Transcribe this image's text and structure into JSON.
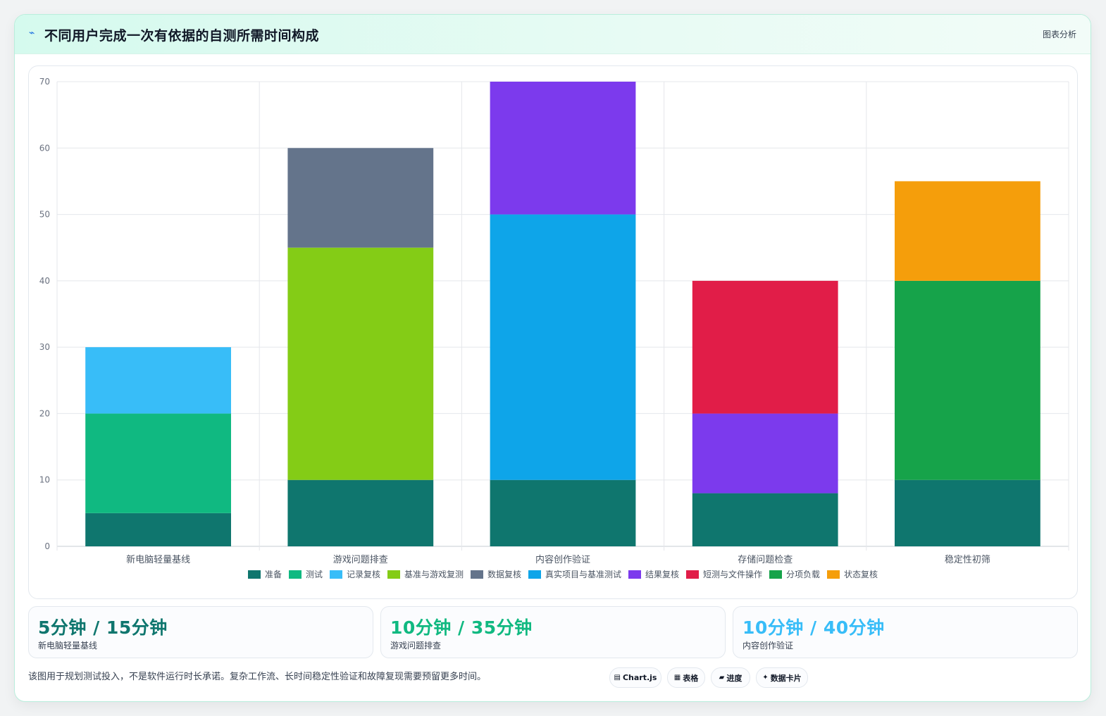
{
  "header": {
    "title": "不同用户完成一次有依据的自测所需时间构成",
    "link_label": "图表分析",
    "bolt_icon": "lightning-icon"
  },
  "chart_data": {
    "type": "bar",
    "stacked": true,
    "title": "",
    "xlabel": "",
    "ylabel": "",
    "ylim": [
      0,
      70
    ],
    "yticks": [
      0,
      10,
      20,
      30,
      40,
      50,
      60,
      70
    ],
    "grid": true,
    "legend_position": "bottom",
    "categories": [
      "新电脑轻量基线",
      "游戏问题排查",
      "内容创作验证",
      "存储问题检查",
      "稳定性初筛"
    ],
    "series": [
      {
        "name": "准备",
        "color": "#0f766e",
        "values": [
          5,
          10,
          10,
          8,
          10
        ]
      },
      {
        "name": "测试",
        "color": "#10b981",
        "values": [
          15,
          0,
          0,
          0,
          0
        ]
      },
      {
        "name": "记录复核",
        "color": "#38bdf8",
        "values": [
          10,
          0,
          0,
          0,
          0
        ]
      },
      {
        "name": "基准与游戏复测",
        "color": "#84cc16",
        "values": [
          0,
          35,
          0,
          0,
          0
        ]
      },
      {
        "name": "数据复核",
        "color": "#64748b",
        "values": [
          0,
          15,
          0,
          0,
          0
        ]
      },
      {
        "name": "真实项目与基准测试",
        "color": "#0ea5e9",
        "values": [
          0,
          0,
          40,
          0,
          0
        ]
      },
      {
        "name": "结果复核",
        "color": "#7c3aed",
        "values": [
          0,
          0,
          20,
          12,
          0
        ]
      },
      {
        "name": "短测与文件操作",
        "color": "#e11d48",
        "values": [
          0,
          0,
          0,
          20,
          0
        ]
      },
      {
        "name": "分项负载",
        "color": "#16a34a",
        "values": [
          0,
          0,
          0,
          0,
          30
        ]
      },
      {
        "name": "状态复核",
        "color": "#f59e0b",
        "values": [
          0,
          0,
          0,
          0,
          15
        ]
      }
    ]
  },
  "stats": [
    {
      "value": "5分钟 / 15分钟",
      "label": "新电脑轻量基线",
      "color": "#0f766e"
    },
    {
      "value": "10分钟 / 35分钟",
      "label": "游戏问题排查",
      "color": "#10b981"
    },
    {
      "value": "10分钟 / 40分钟",
      "label": "内容创作验证",
      "color": "#38bdf8"
    }
  ],
  "footer": {
    "note": "该图用于规划测试投入，不是软件运行时长承诺。复杂工作流、长时间稳定性验证和故障复现需要预留更多时间。",
    "pills": [
      {
        "label": "Chart.js",
        "icon": "chart-icon",
        "glyph": "▤"
      },
      {
        "label": "表格",
        "icon": "table-icon",
        "glyph": "▦"
      },
      {
        "label": "进度",
        "icon": "progress-icon",
        "glyph": "▰"
      },
      {
        "label": "数据卡片",
        "icon": "card-icon",
        "glyph": "✦"
      }
    ]
  }
}
